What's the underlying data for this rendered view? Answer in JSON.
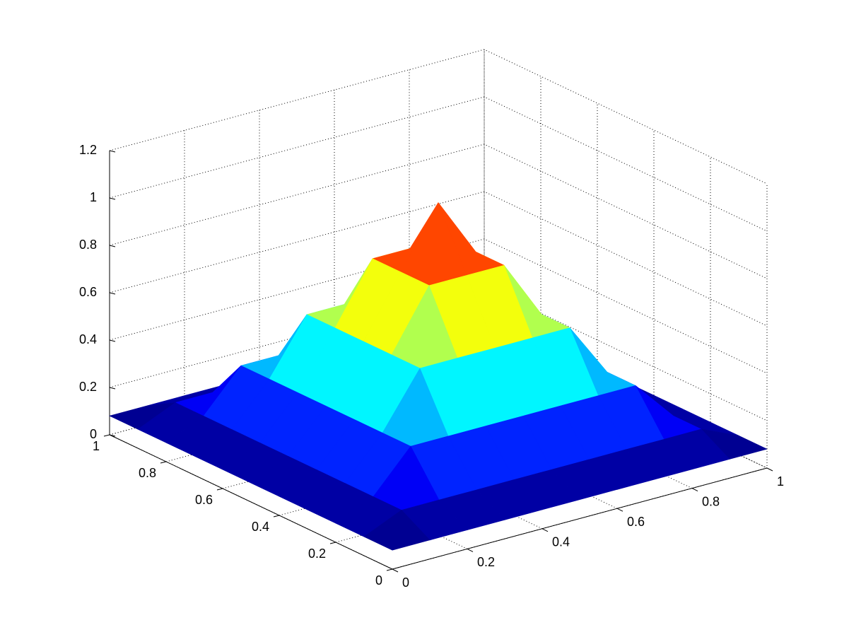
{
  "chart_data": {
    "type": "surface",
    "colormap": "jet",
    "grid": true,
    "x": [
      0,
      0.1,
      0.2,
      0.3,
      0.4,
      0.5,
      0.6,
      0.7,
      0.8,
      0.9,
      1
    ],
    "y": [
      0,
      0.1,
      0.2,
      0.3,
      0.4,
      0.5,
      0.6,
      0.7,
      0.8,
      0.9,
      1
    ],
    "z": [
      [
        0.08,
        0.08,
        0.08,
        0.08,
        0.08,
        0.08,
        0.08,
        0.08,
        0.08,
        0.08,
        0.08
      ],
      [
        0.08,
        0.15,
        0.15,
        0.15,
        0.15,
        0.15,
        0.15,
        0.15,
        0.15,
        0.15,
        0.08
      ],
      [
        0.08,
        0.15,
        0.32,
        0.32,
        0.32,
        0.32,
        0.32,
        0.32,
        0.32,
        0.15,
        0.08
      ],
      [
        0.08,
        0.15,
        0.32,
        0.55,
        0.55,
        0.55,
        0.55,
        0.55,
        0.32,
        0.15,
        0.08
      ],
      [
        0.08,
        0.15,
        0.32,
        0.55,
        0.8,
        0.8,
        0.8,
        0.55,
        0.32,
        0.15,
        0.08
      ],
      [
        0.08,
        0.15,
        0.32,
        0.55,
        0.8,
        1.05,
        0.8,
        0.55,
        0.32,
        0.15,
        0.08
      ],
      [
        0.08,
        0.15,
        0.32,
        0.55,
        0.8,
        0.8,
        0.8,
        0.55,
        0.32,
        0.15,
        0.08
      ],
      [
        0.08,
        0.15,
        0.32,
        0.55,
        0.55,
        0.55,
        0.55,
        0.55,
        0.32,
        0.15,
        0.08
      ],
      [
        0.08,
        0.15,
        0.32,
        0.32,
        0.32,
        0.32,
        0.32,
        0.32,
        0.32,
        0.15,
        0.08
      ],
      [
        0.08,
        0.15,
        0.15,
        0.15,
        0.15,
        0.15,
        0.15,
        0.15,
        0.15,
        0.15,
        0.08
      ],
      [
        0.08,
        0.08,
        0.08,
        0.08,
        0.08,
        0.08,
        0.08,
        0.08,
        0.08,
        0.08,
        0.08
      ]
    ],
    "xlim": [
      0,
      1
    ],
    "ylim": [
      0,
      1
    ],
    "zlim": [
      0,
      1.2
    ],
    "xticks": [
      0,
      0.2,
      0.4,
      0.6,
      0.8,
      1
    ],
    "yticks": [
      0,
      0.2,
      0.4,
      0.6,
      0.8,
      1
    ],
    "zticks": [
      0,
      0.2,
      0.4,
      0.6,
      0.8,
      1,
      1.2
    ]
  }
}
